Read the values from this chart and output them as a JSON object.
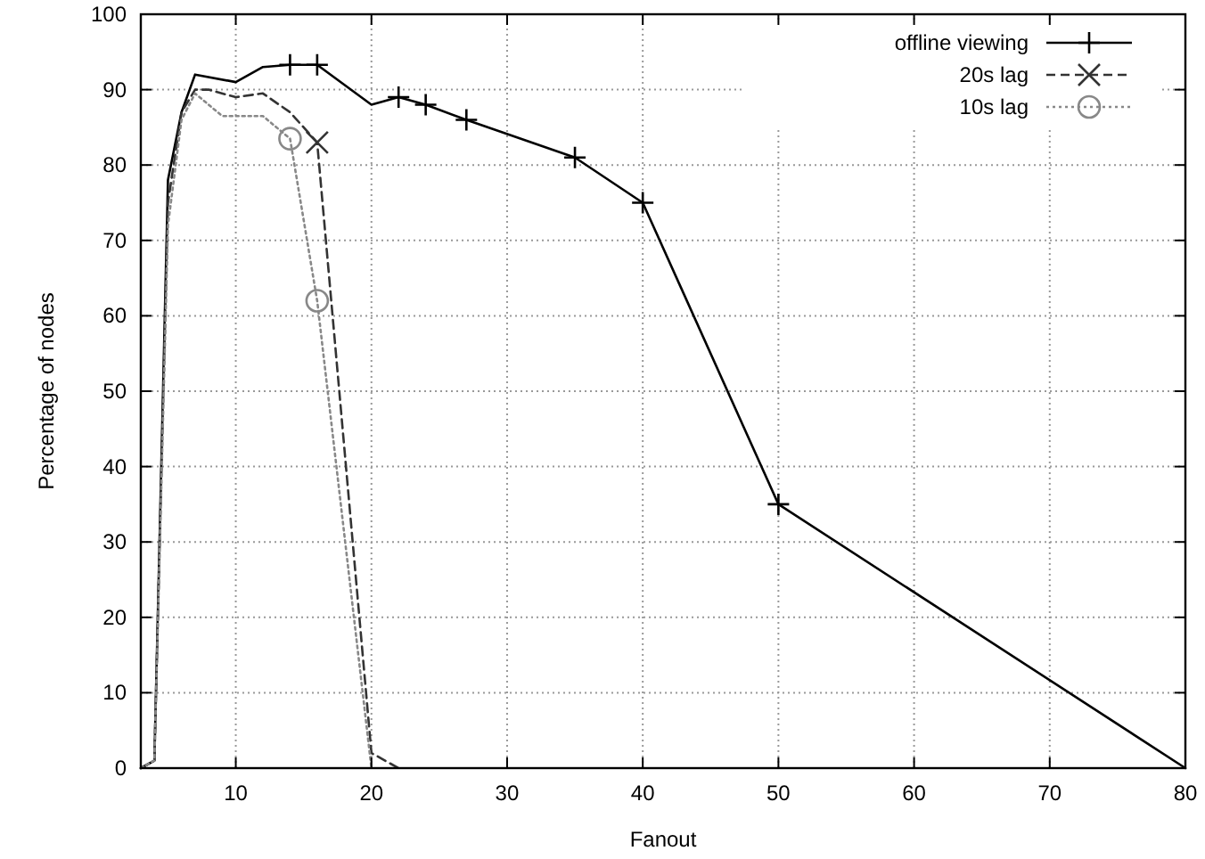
{
  "chart_data": {
    "type": "line",
    "xlabel": "Fanout",
    "ylabel": "Percentage of nodes",
    "xlim": [
      3,
      80
    ],
    "ylim": [
      0,
      100
    ],
    "xticks": [
      10,
      20,
      30,
      40,
      50,
      60,
      70,
      80
    ],
    "yticks": [
      0,
      10,
      20,
      30,
      40,
      50,
      60,
      70,
      80,
      90,
      100
    ],
    "grid": true,
    "legend": "top right",
    "series": [
      {
        "color": "#000000",
        "line_style": "solid",
        "marker": "none",
        "x": [
          3,
          4,
          5,
          6,
          7,
          10,
          12,
          14,
          16,
          20,
          22,
          24,
          27,
          35,
          40,
          50,
          80
        ],
        "values": [
          0,
          1,
          78,
          87,
          92,
          91,
          93,
          93.3,
          93.3,
          88,
          89,
          88,
          86,
          81,
          75,
          35,
          0
        ]
      },
      {
        "type": "scatter",
        "name": "offline viewing",
        "color": "#000000",
        "line_style": "solid",
        "marker": "plus",
        "x": [
          14,
          16,
          22,
          24,
          27,
          35,
          40,
          50
        ],
        "values": [
          93.3,
          93.3,
          89,
          88,
          86,
          81,
          75,
          35
        ]
      },
      {
        "color": "#333333",
        "line_style": "dashed",
        "marker": "none",
        "x": [
          3,
          4,
          5,
          6,
          7,
          8,
          10,
          12,
          14,
          16,
          20,
          22
        ],
        "values": [
          0,
          1,
          75,
          87,
          90,
          90,
          89,
          89.5,
          87,
          83,
          2,
          0
        ]
      },
      {
        "type": "scatter",
        "name": "20s lag",
        "color": "#333333",
        "line_style": "dashed",
        "marker": "cross",
        "x": [
          16
        ],
        "values": [
          83
        ]
      },
      {
        "color": "#888888",
        "line_style": "dotted",
        "marker": "none",
        "x": [
          3,
          4,
          5,
          6,
          7,
          8,
          9,
          10,
          12,
          14,
          16,
          20
        ],
        "values": [
          0,
          1,
          72,
          86,
          89.5,
          88,
          86.5,
          86.5,
          86.5,
          83.5,
          62,
          0
        ]
      },
      {
        "type": "scatter",
        "name": "10s lag",
        "color": "#888888",
        "line_style": "dotted",
        "marker": "circle",
        "x": [
          14,
          16
        ],
        "values": [
          83.5,
          62
        ]
      }
    ]
  }
}
